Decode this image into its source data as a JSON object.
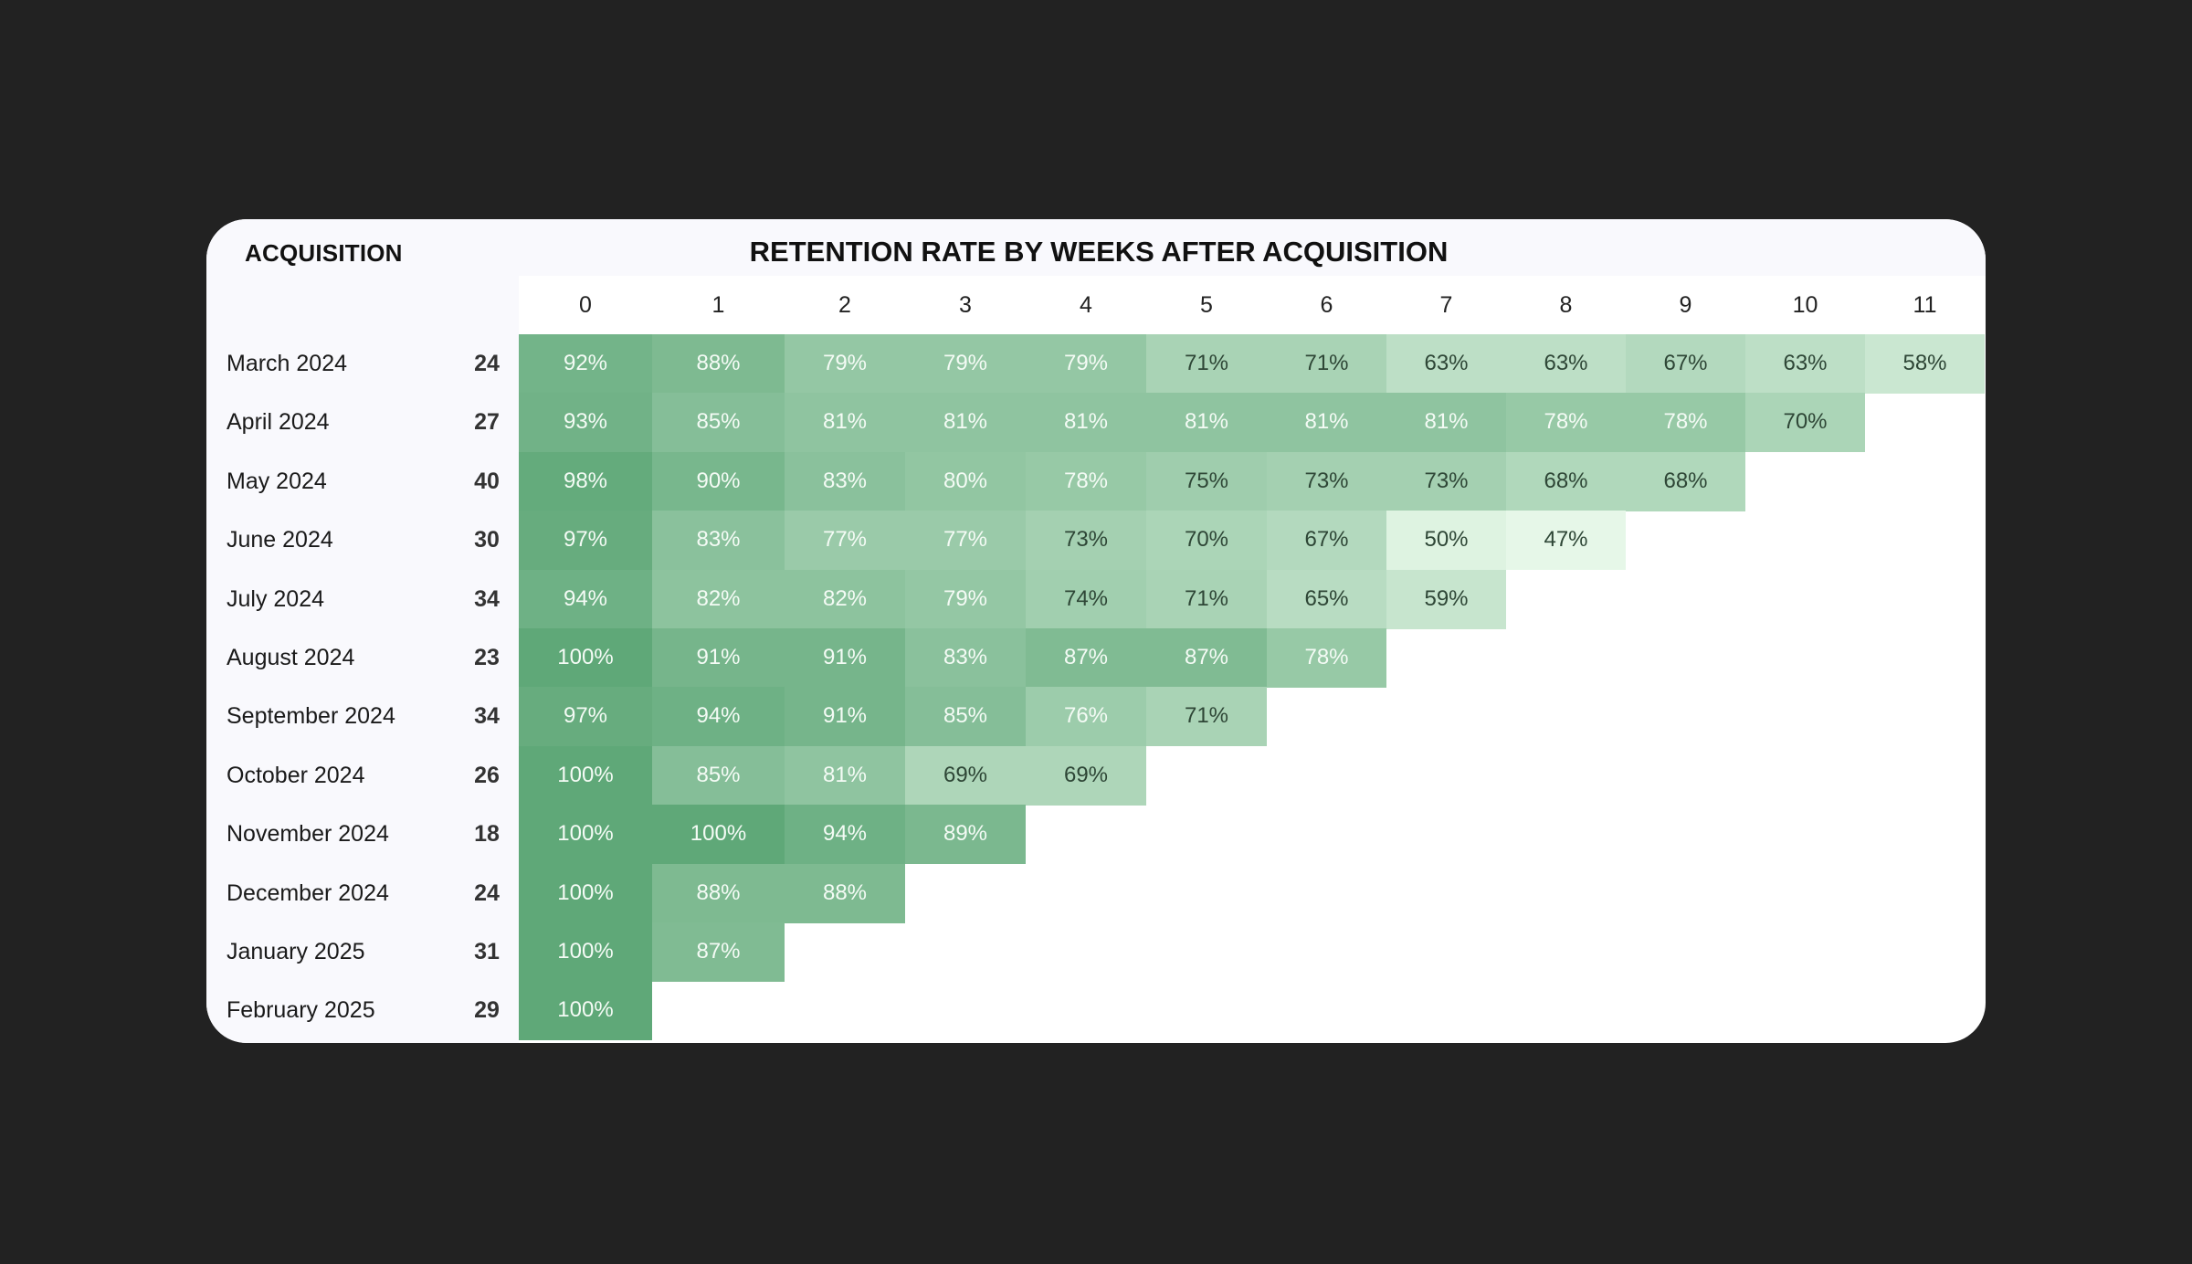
{
  "chart_data": {
    "type": "heatmap",
    "left_title": "ACQUISITION",
    "title": "RETENTION RATE BY WEEKS AFTER ACQUISITION",
    "weeks": [
      "0",
      "1",
      "2",
      "3",
      "4",
      "5",
      "6",
      "7",
      "8",
      "9",
      "10",
      "11"
    ],
    "rows": [
      {
        "label": "March 2024",
        "count": "24",
        "values": [
          92,
          88,
          79,
          79,
          79,
          71,
          71,
          63,
          63,
          67,
          63,
          58
        ]
      },
      {
        "label": "April 2024",
        "count": "27",
        "values": [
          93,
          85,
          81,
          81,
          81,
          81,
          81,
          81,
          78,
          78,
          70
        ]
      },
      {
        "label": "May 2024",
        "count": "40",
        "values": [
          98,
          90,
          83,
          80,
          78,
          75,
          73,
          73,
          68,
          68
        ]
      },
      {
        "label": "June 2024",
        "count": "30",
        "values": [
          97,
          83,
          77,
          77,
          73,
          70,
          67,
          50,
          47
        ]
      },
      {
        "label": "July 2024",
        "count": "34",
        "values": [
          94,
          82,
          82,
          79,
          74,
          71,
          65,
          59
        ]
      },
      {
        "label": "August 2024",
        "count": "23",
        "values": [
          100,
          91,
          91,
          83,
          87,
          87,
          78
        ]
      },
      {
        "label": "September 2024",
        "count": "34",
        "values": [
          97,
          94,
          91,
          85,
          76,
          71
        ]
      },
      {
        "label": "October 2024",
        "count": "26",
        "values": [
          100,
          85,
          81,
          69,
          69
        ]
      },
      {
        "label": "November 2024",
        "count": "18",
        "values": [
          100,
          100,
          94,
          89
        ]
      },
      {
        "label": "December 2024",
        "count": "24",
        "values": [
          100,
          88,
          88
        ]
      },
      {
        "label": "January 2025",
        "count": "31",
        "values": [
          100,
          87
        ]
      },
      {
        "label": "February 2025",
        "count": "29",
        "values": [
          100
        ]
      }
    ],
    "value_suffix": "%",
    "color_scale": {
      "low": "#ebfaec",
      "high": "#5fa878"
    }
  }
}
